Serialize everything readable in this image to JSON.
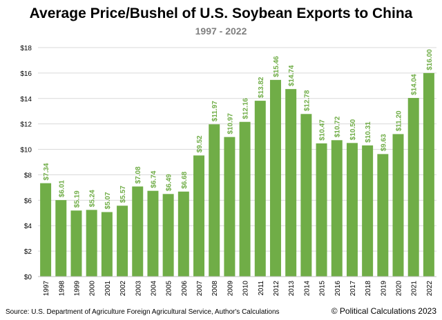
{
  "chart_data": {
    "type": "bar",
    "title": "Average Price/Bushel of U.S. Soybean Exports to China",
    "subtitle": "1997 - 2022",
    "categories": [
      "1997",
      "1998",
      "1999",
      "2000",
      "2001",
      "2002",
      "2003",
      "2004",
      "2005",
      "2006",
      "2007",
      "2008",
      "2009",
      "2010",
      "2011",
      "2012",
      "2013",
      "2014",
      "2015",
      "2016",
      "2017",
      "2018",
      "2019",
      "2020",
      "2021",
      "2022"
    ],
    "values": [
      7.34,
      6.01,
      5.19,
      5.24,
      5.07,
      5.57,
      7.08,
      6.74,
      6.49,
      6.68,
      9.52,
      11.97,
      10.97,
      12.16,
      13.82,
      15.46,
      14.74,
      12.78,
      10.47,
      10.72,
      10.5,
      10.31,
      9.63,
      11.2,
      14.04,
      16.0
    ],
    "data_labels": [
      "$7.34",
      "$6.01",
      "$5.19",
      "$5.24",
      "$5.07",
      "$5.57",
      "$7.08",
      "$6.74",
      "$6.49",
      "$6.68",
      "$9.52",
      "$11.97",
      "$10.97",
      "$12.16",
      "$13.82",
      "$15.46",
      "$14.74",
      "$12.78",
      "$10.47",
      "$10.72",
      "$10.50",
      "$10.31",
      "$9.63",
      "$11.20",
      "$14.04",
      "$16.00"
    ],
    "yticks": [
      0,
      2,
      4,
      6,
      8,
      10,
      12,
      14,
      16,
      18
    ],
    "ytick_labels": [
      "$0",
      "$2",
      "$4",
      "$6",
      "$8",
      "$10",
      "$12",
      "$14",
      "$16",
      "$18"
    ],
    "ylim": [
      0,
      18
    ],
    "xlabel": "",
    "ylabel": "",
    "grid": true,
    "legend": "none",
    "bar_color": "#70ad47",
    "label_color": "#70ad47"
  },
  "footer": {
    "source": "Source: U.S. Department of Agriculture Foreign Agricultural Service, Author's Calculations",
    "copyright": "© Political Calculations 2023"
  }
}
